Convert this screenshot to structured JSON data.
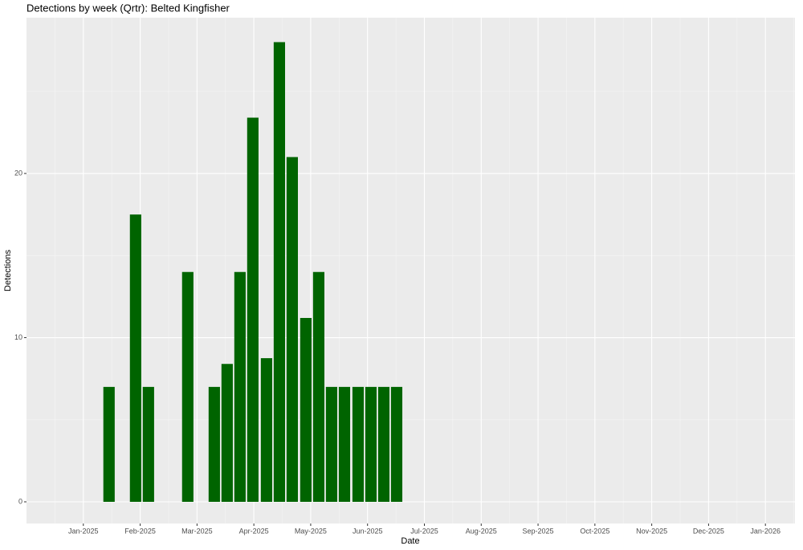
{
  "chart_data": {
    "type": "bar",
    "title": "Detections by week (Qrtr): Belted Kingfisher",
    "xlabel": "Date",
    "ylabel": "Detections",
    "x": [
      1.452,
      1.919,
      2.145,
      2.837,
      3.304,
      3.53,
      3.756,
      3.982,
      4.223,
      4.449,
      4.675,
      4.915,
      5.141,
      5.367,
      5.594,
      5.834,
      6.06,
      6.286,
      6.512
    ],
    "values": [
      7,
      17.5,
      7,
      14,
      7,
      8.4,
      14,
      23.4,
      8.75,
      28,
      21,
      11.2,
      14,
      7,
      7,
      7,
      7,
      7,
      7
    ],
    "color": "#006400",
    "xlim": [
      0,
      13.52
    ],
    "xticks": [
      {
        "value": 1,
        "label": "Jan-2025"
      },
      {
        "value": 2,
        "label": "Feb-2025"
      },
      {
        "value": 3,
        "label": "Mar-2025"
      },
      {
        "value": 4,
        "label": "Apr-2025"
      },
      {
        "value": 5,
        "label": "May-2025"
      },
      {
        "value": 6,
        "label": "Jun-2025"
      },
      {
        "value": 7,
        "label": "Jul-2025"
      },
      {
        "value": 8,
        "label": "Aug-2025"
      },
      {
        "value": 9,
        "label": "Sep-2025"
      },
      {
        "value": 10,
        "label": "Oct-2025"
      },
      {
        "value": 11,
        "label": "Nov-2025"
      },
      {
        "value": 12,
        "label": "Dec-2025"
      },
      {
        "value": 13,
        "label": "Jan-2026"
      }
    ],
    "ylim": [
      -1.32,
      29.49
    ],
    "yticks": [
      0,
      10,
      20
    ],
    "grid": true
  }
}
